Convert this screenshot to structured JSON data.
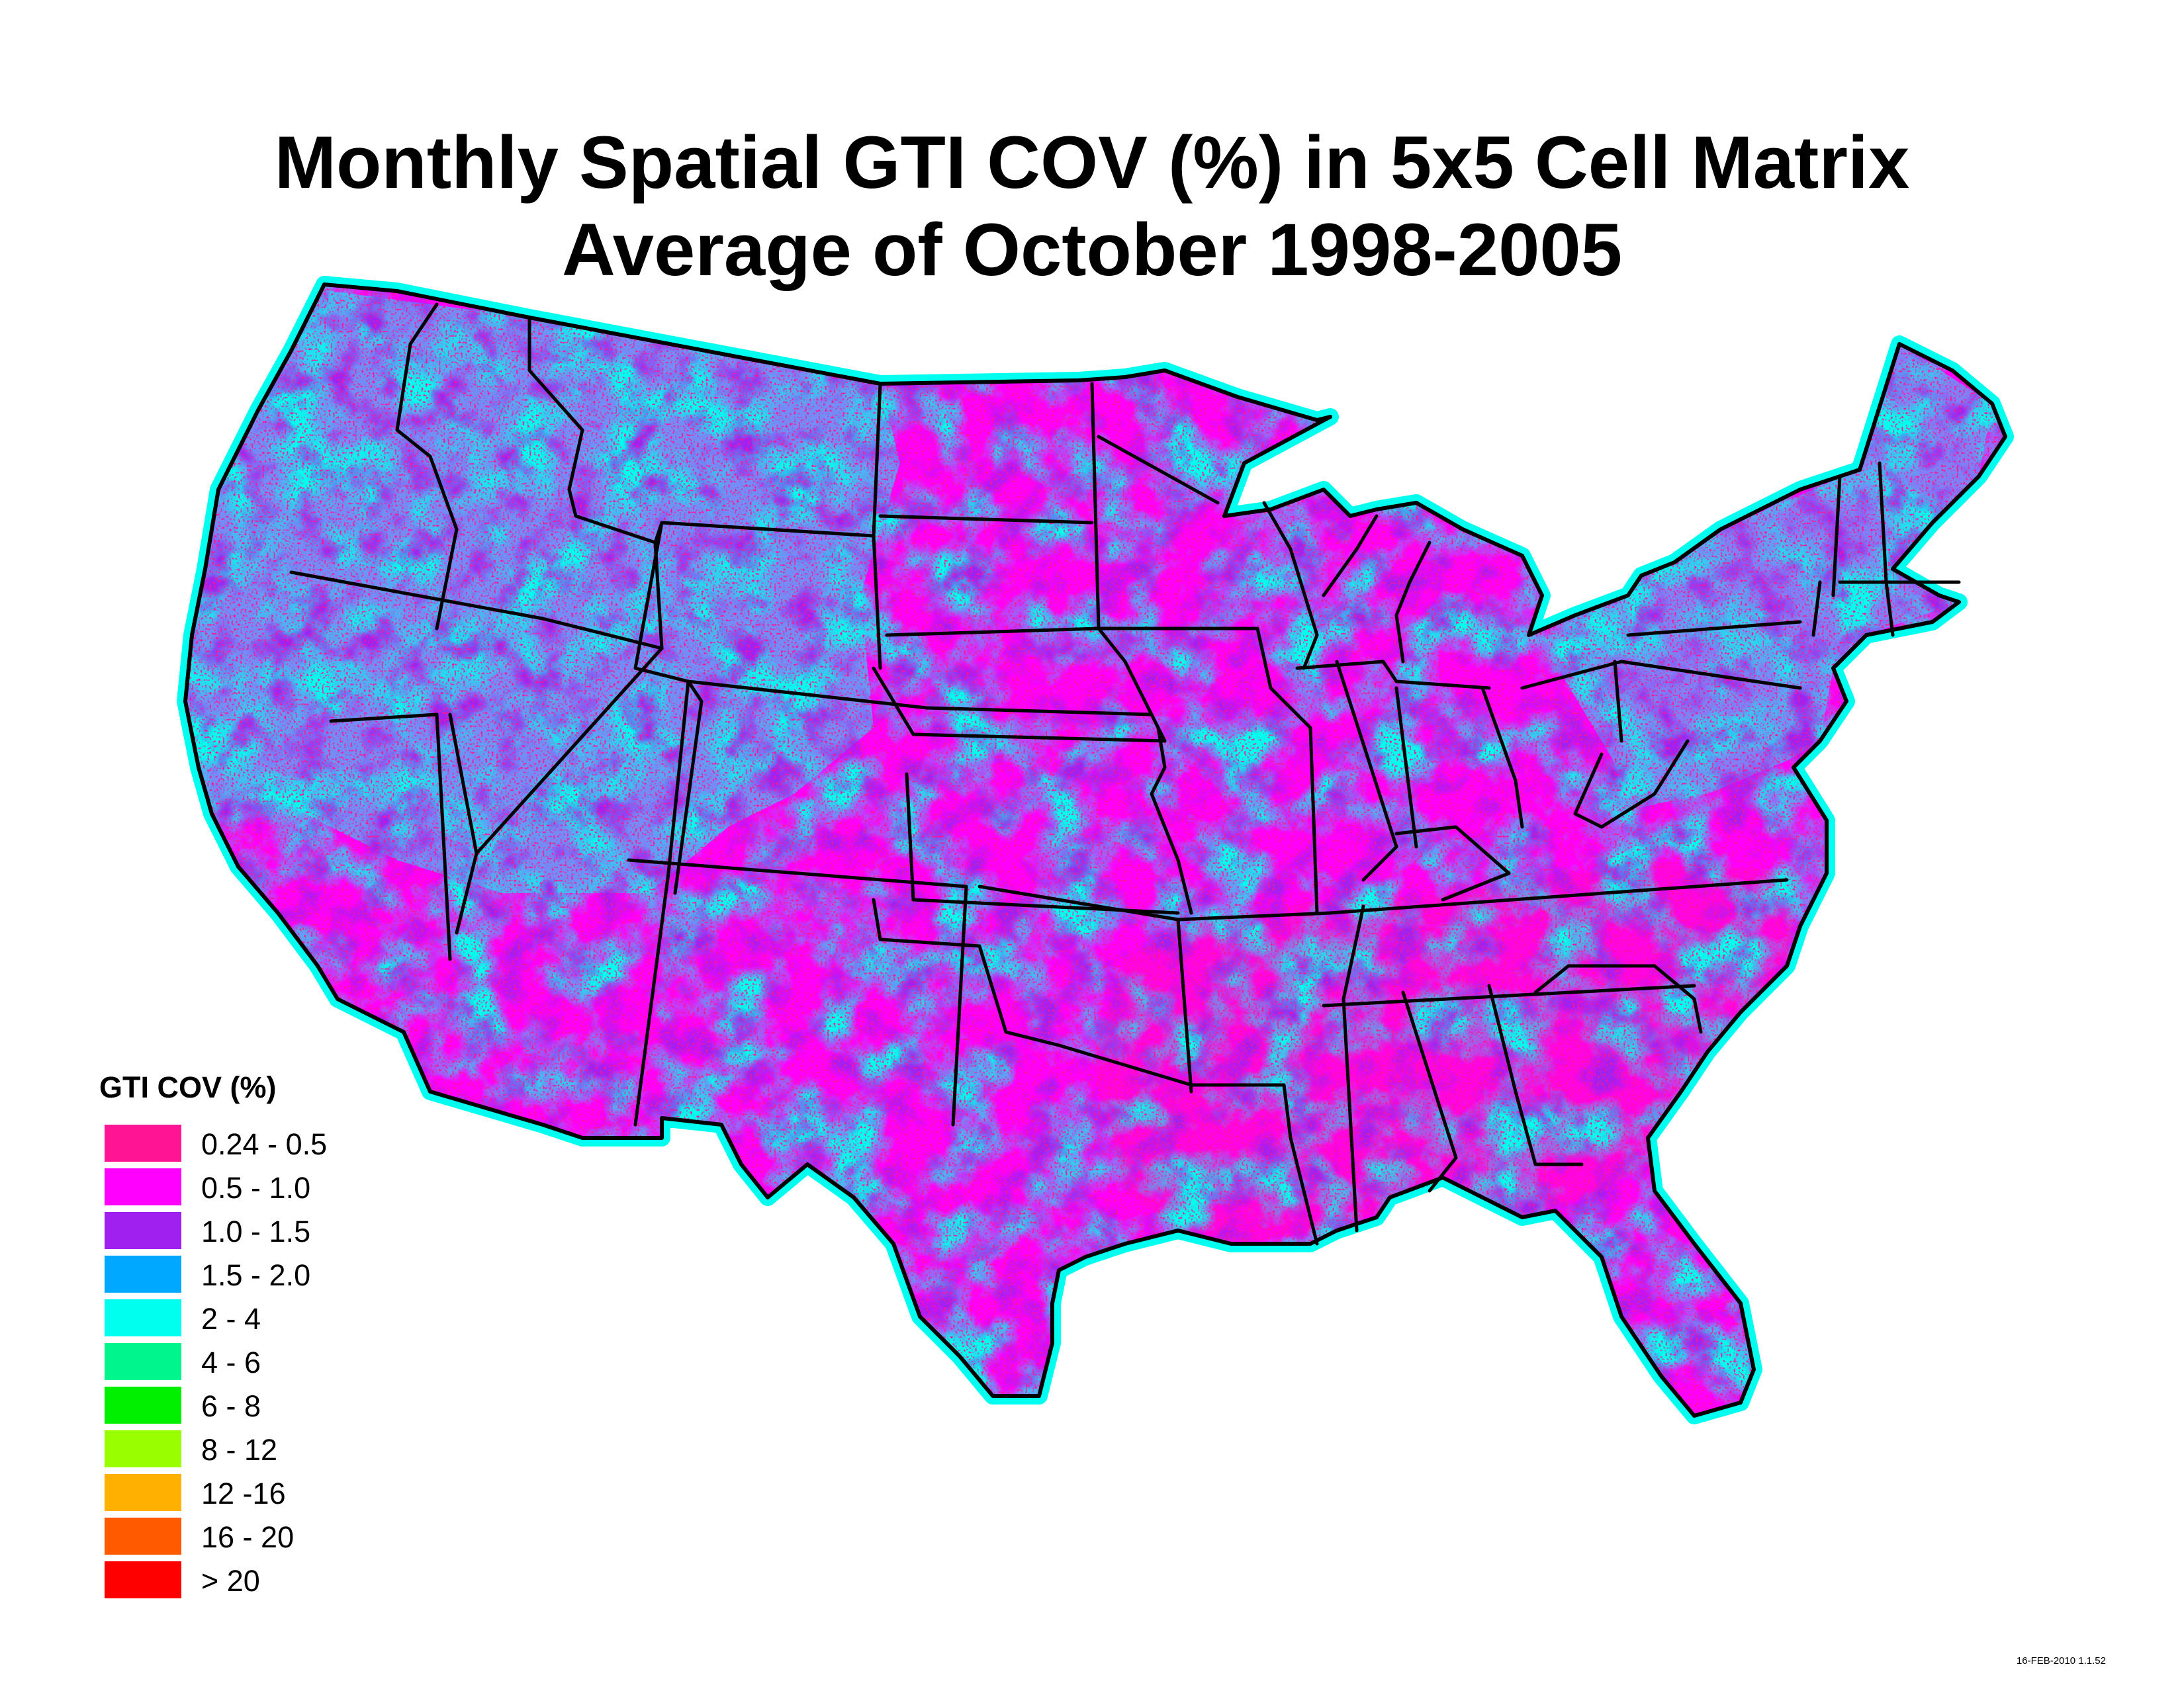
{
  "title_line1": "Monthly Spatial GTI COV (%) in 5x5 Cell Matrix",
  "title_line2": "Average of October 1998-2005",
  "legend": {
    "title": "GTI COV (%)",
    "classes": [
      {
        "label": "0.24 - 0.5",
        "color": "#ff1493"
      },
      {
        "label": "0.5 - 1.0",
        "color": "#ff00ff"
      },
      {
        "label": "1.0 - 1.5",
        "color": "#a020f0"
      },
      {
        "label": "1.5 - 2.0",
        "color": "#00a8ff"
      },
      {
        "label": "2 - 4",
        "color": "#00ffee"
      },
      {
        "label": "4 - 6",
        "color": "#00f58c"
      },
      {
        "label": "6 - 8",
        "color": "#00f000"
      },
      {
        "label": "8 - 12",
        "color": "#99ff00"
      },
      {
        "label": "12 -16",
        "color": "#ffb000"
      },
      {
        "label": "16 - 20",
        "color": "#ff5a00"
      },
      {
        "label": "> 20",
        "color": "#ff0000"
      }
    ]
  },
  "stamp": "16-FEB-2010 1.1.52"
}
